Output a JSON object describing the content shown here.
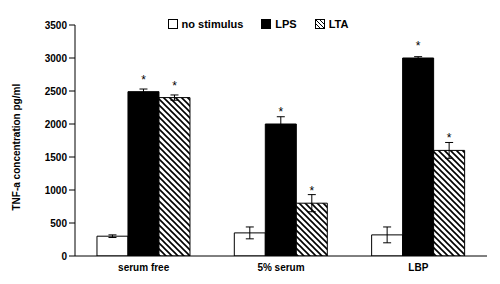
{
  "chart_data": {
    "type": "bar",
    "ylabel": "TNF-a concentration pg/ml",
    "categories": [
      "serum free",
      "5% serum",
      "LBP"
    ],
    "series": [
      {
        "name": "no stimulus",
        "color": "#ffffff",
        "values": [
          300,
          350,
          320
        ],
        "errors": [
          20,
          90,
          120
        ]
      },
      {
        "name": "LPS",
        "color": "#000000",
        "values": [
          2490,
          2000,
          3000
        ],
        "errors": [
          40,
          110,
          20
        ],
        "annotations": [
          "*",
          "*",
          "*"
        ]
      },
      {
        "name": "LTA",
        "color": "#000000",
        "values": [
          2400,
          800,
          1600
        ],
        "errors": [
          40,
          130,
          120
        ],
        "annotations": [
          "*",
          "*",
          "*"
        ]
      }
    ],
    "ylim": [
      0,
      3500
    ],
    "yticks": [
      0,
      500,
      1000,
      1500,
      2000,
      2500,
      3000,
      3500
    ],
    "grid": false,
    "legend": "top"
  }
}
